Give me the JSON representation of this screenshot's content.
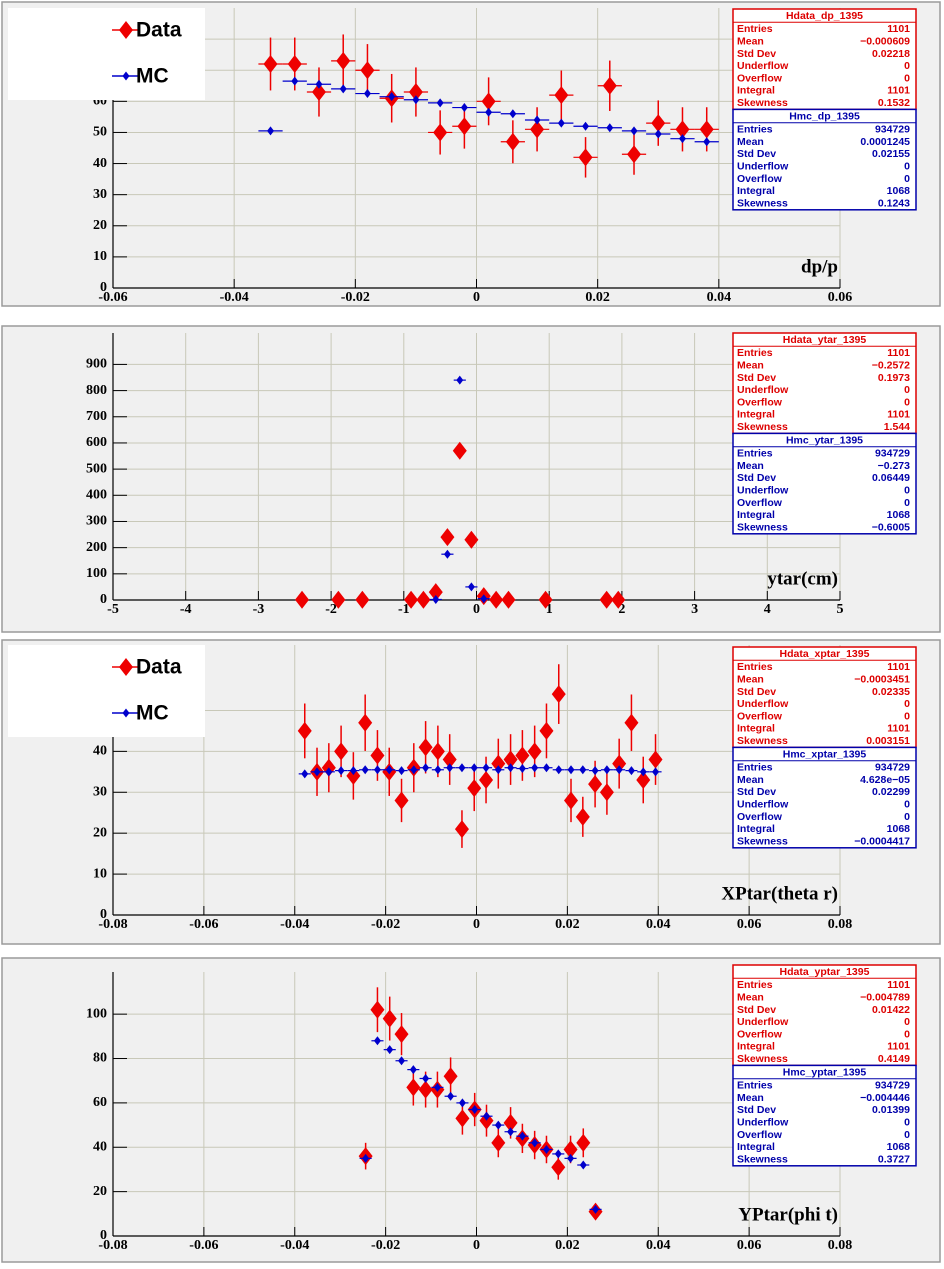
{
  "chart_data": [
    {
      "type": "scatter",
      "x_label": "dp/p",
      "xlim": [
        -0.06,
        0.06
      ],
      "xticks": [
        -0.06,
        -0.04,
        -0.02,
        0,
        0.02,
        0.04,
        0.06
      ],
      "ylim": [
        0,
        90
      ],
      "yticks": [
        0,
        10,
        20,
        30,
        40,
        50,
        60,
        70,
        80
      ],
      "grid": true,
      "legend": true,
      "bin_width": 0.004,
      "series": [
        {
          "name": "Data",
          "color": "#ee0000",
          "marker": "diamond-large",
          "x": [
            -0.034,
            -0.03,
            -0.026,
            -0.022,
            -0.018,
            -0.014,
            -0.01,
            -0.006,
            -0.002,
            0.002,
            0.006,
            0.01,
            0.014,
            0.018,
            0.022,
            0.026,
            0.03,
            0.034,
            0.038
          ],
          "values": [
            72,
            72,
            63,
            73,
            70,
            61,
            63,
            50,
            52,
            60,
            47,
            51,
            62,
            42,
            65,
            43,
            53,
            51,
            51
          ],
          "errors": [
            8.5,
            8.5,
            7.9,
            8.5,
            8.4,
            7.8,
            7.9,
            7.1,
            7.2,
            7.7,
            6.9,
            7.1,
            7.9,
            6.5,
            8.1,
            6.6,
            7.3,
            7.1,
            7.1
          ]
        },
        {
          "name": "MC",
          "color": "#0000cc",
          "marker": "diamond-small",
          "x": [
            -0.034,
            -0.03,
            -0.026,
            -0.022,
            -0.018,
            -0.014,
            -0.01,
            -0.006,
            -0.002,
            0.002,
            0.006,
            0.01,
            0.014,
            0.018,
            0.022,
            0.026,
            0.03,
            0.034,
            0.038
          ],
          "values": [
            50.5,
            66.5,
            65.5,
            64,
            62.5,
            61.5,
            60.5,
            59.5,
            58,
            56.5,
            56,
            54,
            53,
            52,
            51.5,
            50.5,
            49.5,
            48,
            47
          ]
        }
      ],
      "stats": [
        {
          "title": "Hdata_dp_1395",
          "color": "#dd0000",
          "rows": [
            [
              "Entries",
              "1101"
            ],
            [
              "Mean",
              "−0.000609"
            ],
            [
              "Std Dev",
              "0.02218"
            ],
            [
              "Underflow",
              "0"
            ],
            [
              "Overflow",
              "0"
            ],
            [
              "Integral",
              "1101"
            ],
            [
              "Skewness",
              "0.1532"
            ]
          ]
        },
        {
          "title": "Hmc_dp_1395",
          "color": "#0000aa",
          "rows": [
            [
              "Entries",
              "934729"
            ],
            [
              "Mean",
              "0.0001245"
            ],
            [
              "Std Dev",
              "0.02155"
            ],
            [
              "Underflow",
              "0"
            ],
            [
              "Overflow",
              "0"
            ],
            [
              "Integral",
              "1068"
            ],
            [
              "Skewness",
              "0.1243"
            ]
          ]
        }
      ]
    },
    {
      "type": "scatter",
      "x_label": "ytar(cm)",
      "xlim": [
        -5,
        5
      ],
      "xticks": [
        -5,
        -4,
        -3,
        -2,
        -1,
        0,
        1,
        2,
        3,
        4,
        5
      ],
      "ylim": [
        0,
        1020
      ],
      "yticks": [
        0,
        100,
        200,
        300,
        400,
        500,
        600,
        700,
        800,
        900
      ],
      "grid": true,
      "legend": false,
      "bin_width": 0.167,
      "series": [
        {
          "color": "#ee0000",
          "marker": "diamond-large",
          "x": [
            -2.4,
            -1.9,
            -1.57,
            -0.9,
            -0.73,
            -0.56,
            -0.4,
            -0.23,
            -0.07,
            0.1,
            0.27,
            0.44,
            0.95,
            1.79,
            1.95
          ],
          "values": [
            1,
            1,
            1,
            1,
            1,
            30,
            240,
            570,
            230,
            15,
            1,
            1,
            1,
            1,
            1
          ],
          "errors": [
            1,
            1,
            1,
            1,
            1,
            5.5,
            15.5,
            23.9,
            15.2,
            3.9,
            1,
            1,
            1,
            1,
            1
          ]
        },
        {
          "color": "#0000cc",
          "marker": "diamond-small",
          "x": [
            -0.56,
            -0.4,
            -0.23,
            -0.07,
            0.1
          ],
          "values": [
            2,
            175,
            840,
            50,
            5
          ]
        }
      ],
      "stats": [
        {
          "title": "Hdata_ytar_1395",
          "color": "#dd0000",
          "rows": [
            [
              "Entries",
              "1101"
            ],
            [
              "Mean",
              "−0.2572"
            ],
            [
              "Std Dev",
              "0.1973"
            ],
            [
              "Underflow",
              "0"
            ],
            [
              "Overflow",
              "0"
            ],
            [
              "Integral",
              "1101"
            ],
            [
              "Skewness",
              "1.544"
            ]
          ]
        },
        {
          "title": "Hmc_ytar_1395",
          "color": "#0000aa",
          "rows": [
            [
              "Entries",
              "934729"
            ],
            [
              "Mean",
              "−0.273"
            ],
            [
              "Std Dev",
              "0.06449"
            ],
            [
              "Underflow",
              "0"
            ],
            [
              "Overflow",
              "0"
            ],
            [
              "Integral",
              "1068"
            ],
            [
              "Skewness",
              "−0.6005"
            ]
          ]
        }
      ]
    },
    {
      "type": "scatter",
      "x_label": "XPtar(theta r)",
      "xlim": [
        -0.08,
        0.08
      ],
      "xticks": [
        -0.08,
        -0.06,
        -0.04,
        -0.02,
        0,
        0.02,
        0.04,
        0.06,
        0.08
      ],
      "ylim": [
        0,
        66
      ],
      "yticks": [
        0,
        10,
        20,
        30,
        40,
        50
      ],
      "grid": true,
      "legend": true,
      "bin_width": 0.00266,
      "series": [
        {
          "name": "Data",
          "color": "#ee0000",
          "marker": "diamond-large",
          "x": [
            -0.0378,
            -0.0351,
            -0.0325,
            -0.0298,
            -0.0271,
            -0.0245,
            -0.0218,
            -0.0192,
            -0.0165,
            -0.0138,
            -0.0112,
            -0.0085,
            -0.0059,
            -0.0032,
            -0.0005,
            0.0021,
            0.0048,
            0.0075,
            0.0101,
            0.0128,
            0.0154,
            0.0181,
            0.0208,
            0.0234,
            0.0261,
            0.0287,
            0.0314,
            0.0341,
            0.0367,
            0.0394
          ],
          "values": [
            45,
            35,
            36,
            40,
            34,
            47,
            39,
            35,
            28,
            36,
            41,
            40,
            38,
            21,
            31,
            33,
            37,
            38,
            39,
            40,
            45,
            54,
            28,
            24,
            32,
            30,
            37,
            47,
            33,
            38
          ],
          "errors": [
            6.7,
            5.9,
            6,
            6.3,
            5.8,
            6.9,
            6.2,
            5.9,
            5.3,
            6,
            6.4,
            6.3,
            6.2,
            4.6,
            5.6,
            5.7,
            6.1,
            6.2,
            6.2,
            6.3,
            6.7,
            7.3,
            5.3,
            4.9,
            5.7,
            5.5,
            6.1,
            6.9,
            5.7,
            6.2
          ]
        },
        {
          "name": "MC",
          "color": "#0000cc",
          "marker": "diamond-small",
          "x": [
            -0.0378,
            -0.0351,
            -0.0325,
            -0.0298,
            -0.0271,
            -0.0245,
            -0.0218,
            -0.0192,
            -0.0165,
            -0.0138,
            -0.0112,
            -0.0085,
            -0.0059,
            -0.0032,
            -0.0005,
            0.0021,
            0.0048,
            0.0075,
            0.0101,
            0.0128,
            0.0154,
            0.0181,
            0.0208,
            0.0234,
            0.0261,
            0.0287,
            0.0314,
            0.0341,
            0.0367,
            0.0394
          ],
          "values": [
            34.5,
            35,
            35,
            35.3,
            35.3,
            35.5,
            35.5,
            35.5,
            35.3,
            35.5,
            36,
            35.5,
            36,
            36,
            36,
            36,
            35.5,
            36,
            35.8,
            36,
            36,
            35.5,
            35.5,
            35.5,
            35.3,
            35.5,
            35.5,
            35.3,
            35,
            35
          ]
        }
      ],
      "stats": [
        {
          "title": "Hdata_xptar_1395",
          "color": "#dd0000",
          "rows": [
            [
              "Entries",
              "1101"
            ],
            [
              "Mean",
              "−0.0003451"
            ],
            [
              "Std Dev",
              "0.02335"
            ],
            [
              "Underflow",
              "0"
            ],
            [
              "Overflow",
              "0"
            ],
            [
              "Integral",
              "1101"
            ],
            [
              "Skewness",
              "0.003151"
            ]
          ]
        },
        {
          "title": "Hmc_xptar_1395",
          "color": "#0000aa",
          "rows": [
            [
              "Entries",
              "934729"
            ],
            [
              "Mean",
              "4.628e−05"
            ],
            [
              "Std Dev",
              "0.02299"
            ],
            [
              "Underflow",
              "0"
            ],
            [
              "Overflow",
              "0"
            ],
            [
              "Integral",
              "1068"
            ],
            [
              "Skewness",
              "−0.0004417"
            ]
          ]
        }
      ]
    },
    {
      "type": "scatter",
      "x_label": "YPtar(phi t)",
      "xlim": [
        -0.08,
        0.08
      ],
      "xticks": [
        -0.08,
        -0.06,
        -0.04,
        -0.02,
        0,
        0.02,
        0.04,
        0.06,
        0.08
      ],
      "ylim": [
        0,
        119
      ],
      "yticks": [
        0,
        20,
        40,
        60,
        80,
        100
      ],
      "grid": true,
      "legend": false,
      "bin_width": 0.00266,
      "series": [
        {
          "color": "#ee0000",
          "marker": "diamond-large",
          "x": [
            -0.0244,
            -0.0218,
            -0.0191,
            -0.0165,
            -0.0139,
            -0.0112,
            -0.0086,
            -0.0057,
            -0.0031,
            -0.0004,
            0.0022,
            0.0048,
            0.0075,
            0.0101,
            0.0128,
            0.0154,
            0.018,
            0.0207,
            0.0235,
            0.0262
          ],
          "values": [
            36,
            102,
            98,
            91,
            67,
            66,
            66,
            72,
            53,
            57,
            52,
            42,
            51,
            44,
            41,
            39,
            31,
            39,
            42,
            11
          ],
          "errors": [
            6,
            10.1,
            9.9,
            9.5,
            8.2,
            8.1,
            8.1,
            8.5,
            7.3,
            7.5,
            7.2,
            6.5,
            7.1,
            6.6,
            6.4,
            6.2,
            5.6,
            6.2,
            6.5,
            3.3
          ]
        },
        {
          "color": "#0000cc",
          "marker": "diamond-small",
          "x": [
            -0.0244,
            -0.0218,
            -0.0191,
            -0.0165,
            -0.0139,
            -0.0112,
            -0.0086,
            -0.0057,
            -0.0031,
            -0.0004,
            0.0022,
            0.0048,
            0.0075,
            0.0101,
            0.0128,
            0.0154,
            0.018,
            0.0207,
            0.0235,
            0.0262
          ],
          "values": [
            35,
            88,
            84,
            79,
            75,
            71,
            67,
            63,
            60,
            57,
            54,
            50,
            47,
            45,
            42,
            39,
            37,
            35,
            32,
            12
          ]
        }
      ],
      "stats": [
        {
          "title": "Hdata_yptar_1395",
          "color": "#dd0000",
          "rows": [
            [
              "Entries",
              "1101"
            ],
            [
              "Mean",
              "−0.004789"
            ],
            [
              "Std Dev",
              "0.01422"
            ],
            [
              "Underflow",
              "0"
            ],
            [
              "Overflow",
              "0"
            ],
            [
              "Integral",
              "1101"
            ],
            [
              "Skewness",
              "0.4149"
            ]
          ]
        },
        {
          "title": "Hmc_yptar_1395",
          "color": "#0000aa",
          "rows": [
            [
              "Entries",
              "934729"
            ],
            [
              "Mean",
              "−0.004446"
            ],
            [
              "Std Dev",
              "0.01399"
            ],
            [
              "Underflow",
              "0"
            ],
            [
              "Overflow",
              "0"
            ],
            [
              "Integral",
              "1068"
            ],
            [
              "Skewness",
              "0.3727"
            ]
          ]
        }
      ]
    }
  ]
}
